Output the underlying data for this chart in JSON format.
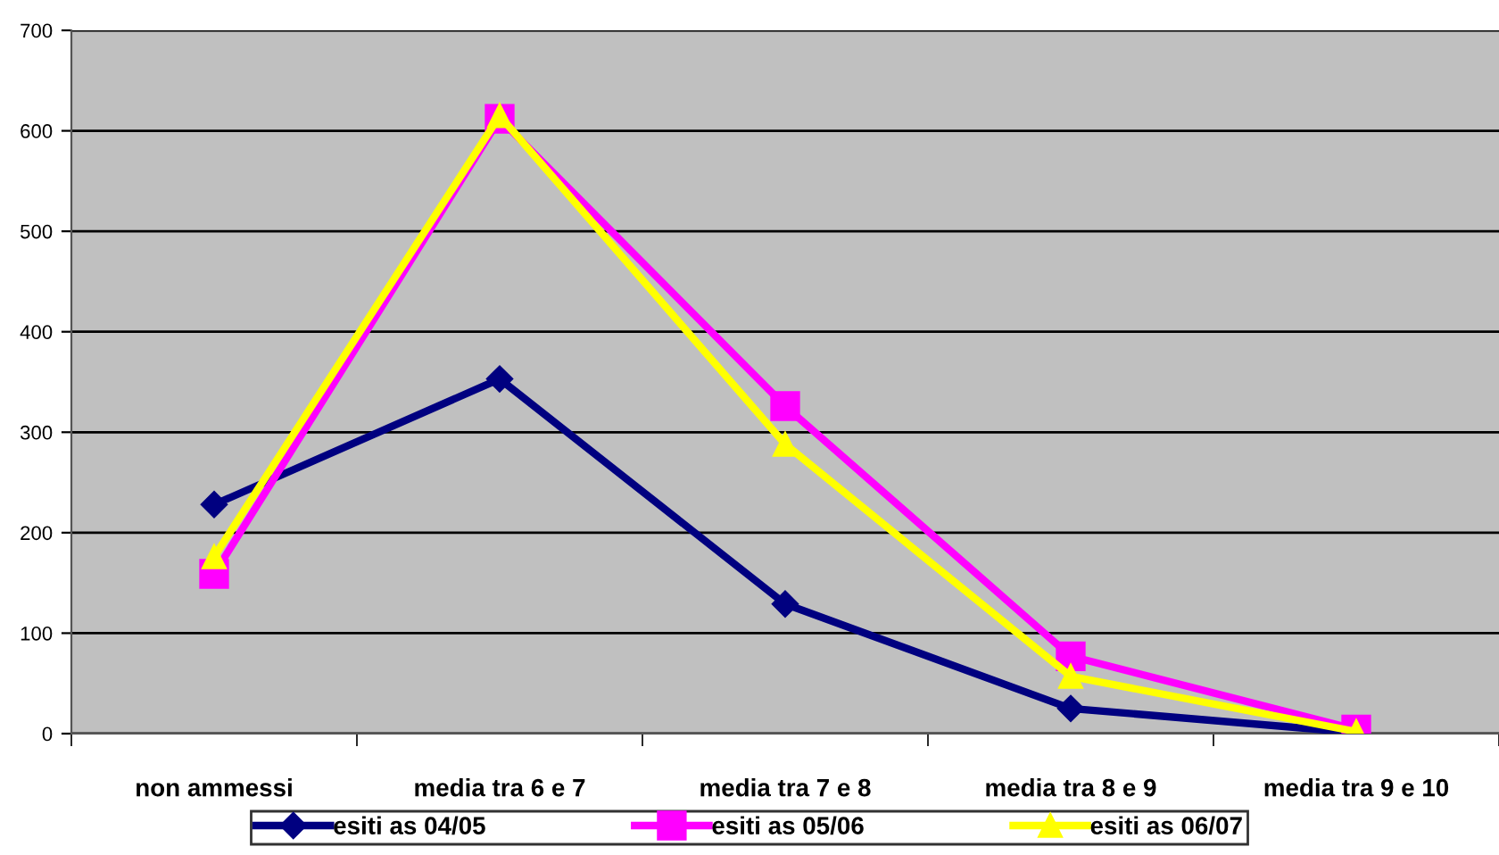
{
  "chart_data": {
    "type": "line",
    "categories": [
      "non ammessi",
      "media tra 6 e 7",
      "media tra 7 e 8",
      "media tra 8 e 9",
      "media tra 9 e 10"
    ],
    "series": [
      {
        "name": "esiti as 04/05",
        "color": "#000080",
        "marker": "diamond",
        "values": [
          228,
          353,
          129,
          25,
          1
        ]
      },
      {
        "name": "esiti as 05/06",
        "color": "#ff00ff",
        "marker": "square",
        "values": [
          159,
          612,
          326,
          77,
          4
        ]
      },
      {
        "name": "esiti as 06/07",
        "color": "#ffff00",
        "marker": "triangle",
        "values": [
          176,
          615,
          288,
          57,
          2
        ]
      }
    ],
    "ylim": [
      0,
      700
    ],
    "yticks": [
      0,
      100,
      200,
      300,
      400,
      500,
      600,
      700
    ],
    "grid": "y",
    "legend": "bottom"
  }
}
